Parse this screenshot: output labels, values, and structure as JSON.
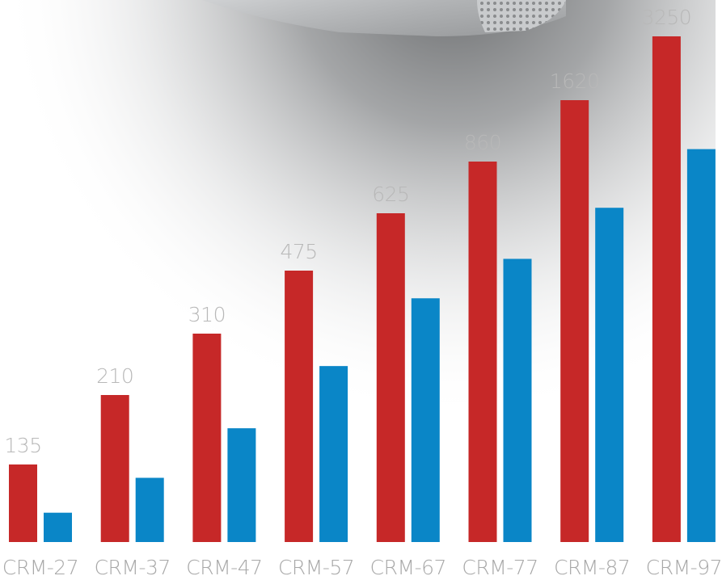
{
  "chart_data": {
    "type": "bar",
    "categories": [
      "CRM-27",
      "CRM-37",
      "CRM-47",
      "CRM-57",
      "CRM-67",
      "CRM-77",
      "CRM-87",
      "CRM-97"
    ],
    "series": [
      {
        "color": "#c62828",
        "values": [
          135,
          210,
          310,
          475,
          625,
          860,
          1620,
          3250
        ],
        "data_labels": [
          "135",
          "210",
          "310",
          "475",
          "625",
          "860",
          "1620",
          "3250"
        ]
      },
      {
        "color": "#0a86c7",
        "relative_heights": [
          0.058,
          0.127,
          0.225,
          0.348,
          0.482,
          0.56,
          0.661,
          0.777
        ]
      }
    ],
    "title": "",
    "xlabel": "",
    "ylabel": "",
    "grid": false,
    "legend": "none"
  }
}
